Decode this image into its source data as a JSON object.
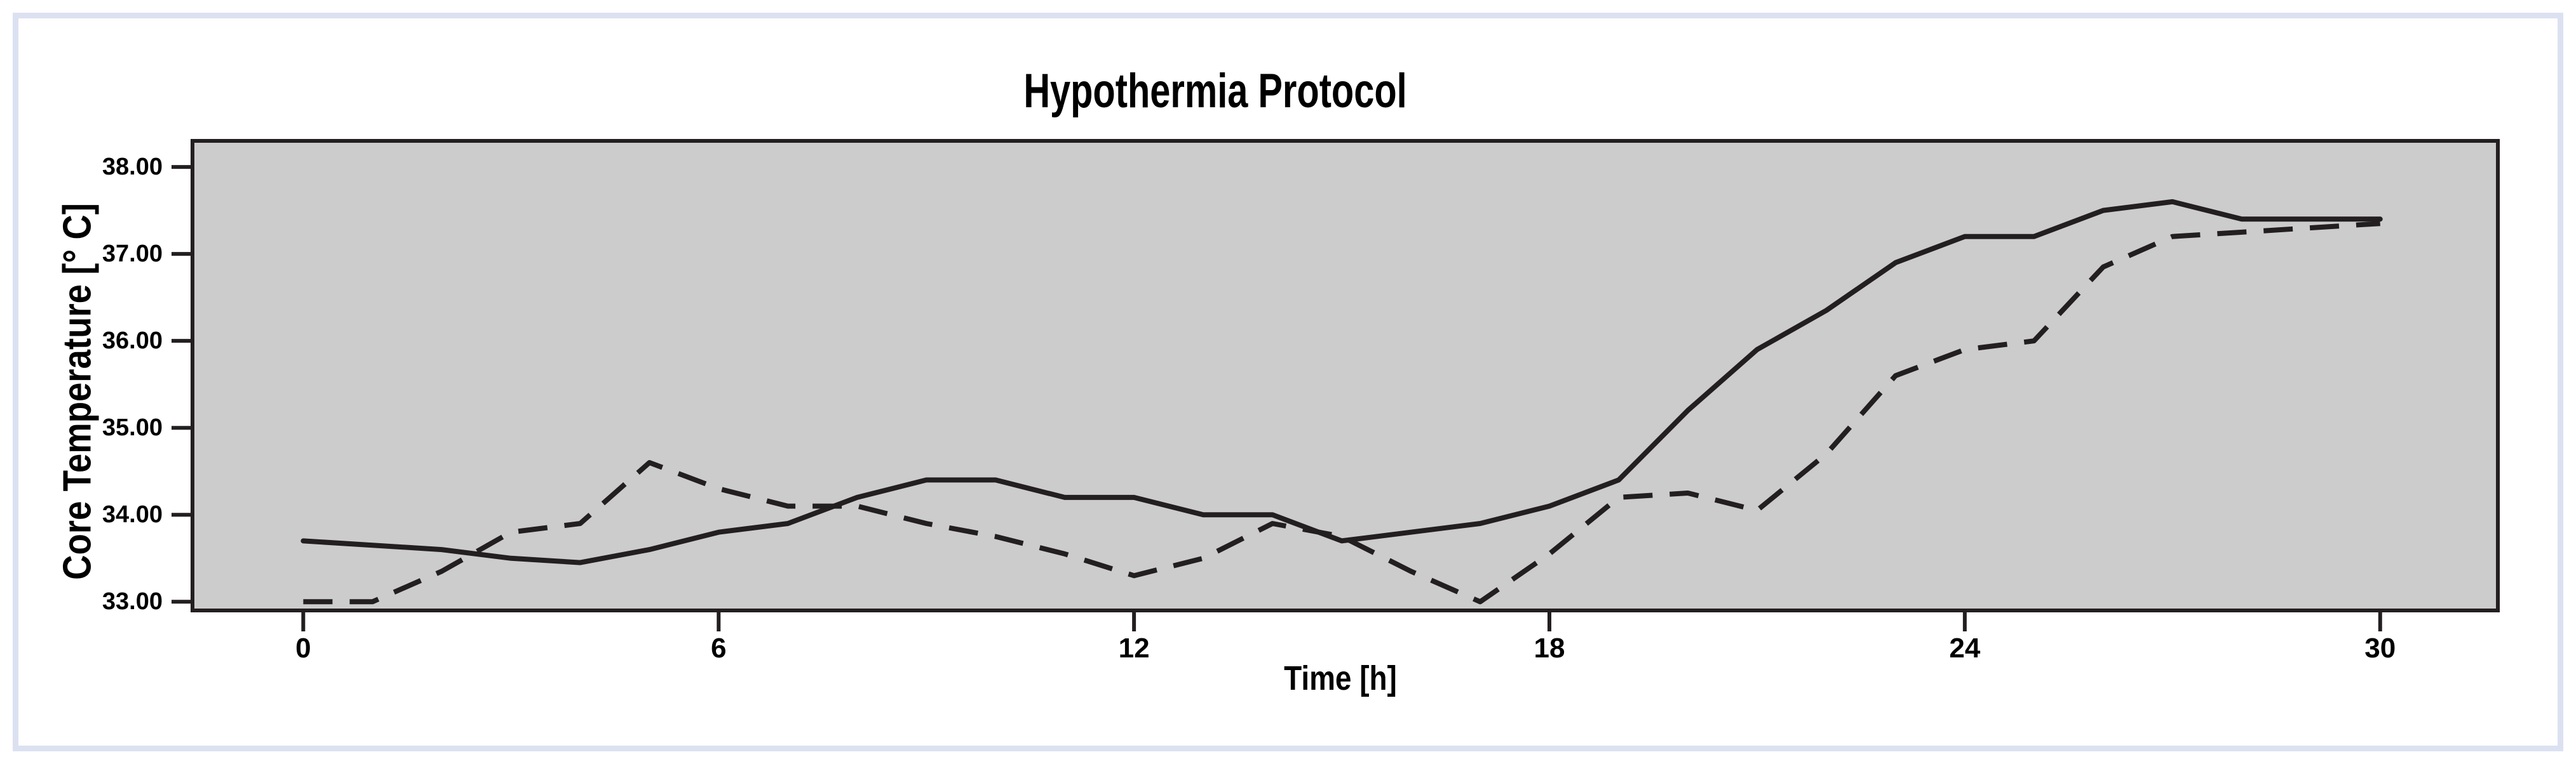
{
  "window": {
    "background": "#ffffff",
    "frame_color": "#dce1f1"
  },
  "chart": {
    "title": "Hypothermia Protocol",
    "plot_background": "#cccccc",
    "axis_color": "#231f20",
    "line_color": "#231f20",
    "x_axis": {
      "label": "Time [h]",
      "tick_labels": [
        "0",
        "6",
        "12",
        "18",
        "24",
        "30"
      ]
    },
    "y_axis": {
      "label": "Core Temperature [° C]",
      "tick_labels": [
        "38.00",
        "37.00",
        "36.00",
        "35.00",
        "34.00",
        "33.00"
      ]
    }
  },
  "chart_data": {
    "type": "line",
    "title": "Hypothermia Protocol",
    "xlabel": "Time [h]",
    "ylabel": "Core Temperature [° C]",
    "xlim": [
      -1.6,
      31.7
    ],
    "ylim": [
      32.9,
      38.3
    ],
    "x_ticks": [
      0,
      6,
      12,
      18,
      24,
      30
    ],
    "y_ticks": [
      38,
      37,
      36,
      35,
      34,
      33
    ],
    "grid": false,
    "legend": "none",
    "x": [
      0,
      1,
      2,
      3,
      4,
      5,
      6,
      7,
      8,
      9,
      10,
      11,
      12,
      13,
      14,
      15,
      16,
      17,
      18,
      19,
      20,
      21,
      22,
      23,
      24,
      25,
      26,
      27,
      28,
      29,
      30
    ],
    "series": [
      {
        "name": "solid-line",
        "style": "solid",
        "values": [
          33.7,
          33.65,
          33.6,
          33.5,
          33.45,
          33.6,
          33.8,
          33.9,
          34.2,
          34.4,
          34.4,
          34.2,
          34.2,
          34.0,
          34.0,
          33.7,
          33.8,
          33.9,
          34.1,
          34.4,
          35.2,
          35.9,
          36.35,
          36.9,
          37.2,
          37.2,
          37.5,
          37.6,
          37.4,
          37.4,
          37.4
        ]
      },
      {
        "name": "dashed-line",
        "style": "dashed",
        "values": [
          33.0,
          33.0,
          33.35,
          33.8,
          33.9,
          34.6,
          34.3,
          34.1,
          34.1,
          33.9,
          33.75,
          33.55,
          33.3,
          33.5,
          33.9,
          33.75,
          33.35,
          33.0,
          33.55,
          34.2,
          34.25,
          34.05,
          34.7,
          35.6,
          35.9,
          36.0,
          36.85,
          37.2,
          37.25,
          37.3,
          37.35
        ]
      }
    ]
  }
}
